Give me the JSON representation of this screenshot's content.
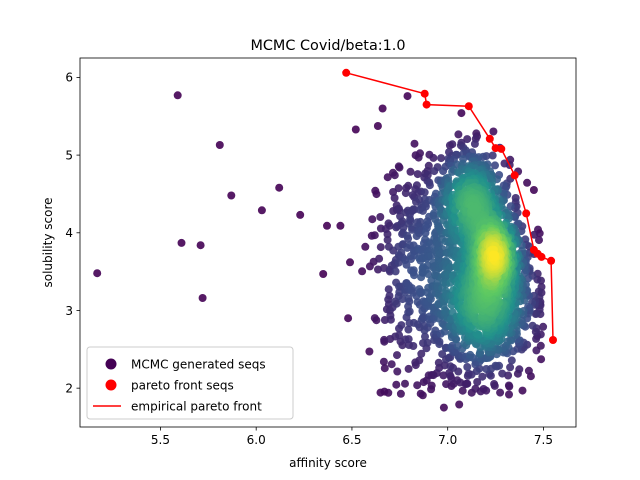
{
  "chart_data": {
    "type": "scatter",
    "title": "MCMC Covid/beta:1.0",
    "xlabel": "affinity score",
    "ylabel": "solubility score",
    "xlim": [
      5.08,
      7.67
    ],
    "ylim": [
      1.5,
      6.25
    ],
    "xticks": [
      5.5,
      6.0,
      6.5,
      7.0,
      7.5
    ],
    "xtick_labels": [
      "5.5",
      "6.0",
      "6.5",
      "7.0",
      "7.5"
    ],
    "yticks": [
      2,
      3,
      4,
      5,
      6
    ],
    "ytick_labels": [
      "2",
      "3",
      "4",
      "5",
      "6"
    ],
    "grid": false,
    "legend_position": "lower-left",
    "colors": {
      "density_low": "#440154",
      "density_mid": "#21918c",
      "density_high": "#fde725",
      "pareto": "#ff0000"
    },
    "series": [
      {
        "name": "MCMC generated seqs",
        "marker": "circle",
        "color_mapping": "viridis by point density",
        "outliers": [
          {
            "x": 5.17,
            "y": 3.48
          },
          {
            "x": 5.59,
            "y": 5.77
          },
          {
            "x": 5.61,
            "y": 3.87
          },
          {
            "x": 5.71,
            "y": 3.84
          },
          {
            "x": 5.72,
            "y": 3.16
          },
          {
            "x": 5.81,
            "y": 5.13
          },
          {
            "x": 5.87,
            "y": 4.48
          },
          {
            "x": 6.03,
            "y": 4.29
          },
          {
            "x": 6.12,
            "y": 4.58
          },
          {
            "x": 6.23,
            "y": 4.23
          },
          {
            "x": 6.35,
            "y": 3.47
          },
          {
            "x": 6.37,
            "y": 4.09
          },
          {
            "x": 6.49,
            "y": 3.62
          },
          {
            "x": 6.52,
            "y": 5.33
          },
          {
            "x": 6.66,
            "y": 5.6
          },
          {
            "x": 6.79,
            "y": 5.76
          },
          {
            "x": 6.48,
            "y": 2.9
          },
          {
            "x": 6.44,
            "y": 4.09
          },
          {
            "x": 6.57,
            "y": 3.82
          },
          {
            "x": 6.69,
            "y": 1.94
          },
          {
            "x": 6.98,
            "y": 1.75
          },
          {
            "x": 7.06,
            "y": 1.79
          }
        ],
        "clusters": [
          {
            "cx": 7.2,
            "cy": 3.1,
            "sx": 0.13,
            "sy": 0.45,
            "n": 900
          },
          {
            "cx": 7.13,
            "cy": 4.4,
            "sx": 0.1,
            "sy": 0.35,
            "n": 520
          },
          {
            "cx": 7.25,
            "cy": 3.75,
            "sx": 0.07,
            "sy": 0.28,
            "n": 420
          },
          {
            "cx": 6.95,
            "cy": 3.6,
            "sx": 0.15,
            "sy": 0.7,
            "n": 350
          },
          {
            "cx": 6.78,
            "cy": 3.4,
            "sx": 0.1,
            "sy": 0.8,
            "n": 120
          }
        ]
      },
      {
        "name": "pareto front seqs",
        "color": "#ff0000",
        "points": [
          {
            "x": 6.47,
            "y": 6.06
          },
          {
            "x": 6.88,
            "y": 5.79
          },
          {
            "x": 6.89,
            "y": 5.65
          },
          {
            "x": 7.11,
            "y": 5.63
          },
          {
            "x": 7.22,
            "y": 5.21
          },
          {
            "x": 7.25,
            "y": 5.09
          },
          {
            "x": 7.28,
            "y": 5.08
          },
          {
            "x": 7.35,
            "y": 4.74
          },
          {
            "x": 7.41,
            "y": 4.25
          },
          {
            "x": 7.45,
            "y": 3.78
          },
          {
            "x": 7.47,
            "y": 3.73
          },
          {
            "x": 7.49,
            "y": 3.69
          },
          {
            "x": 7.54,
            "y": 3.64
          },
          {
            "x": 7.55,
            "y": 2.62
          }
        ]
      },
      {
        "name": "empirical pareto front",
        "type": "line",
        "color": "#ff0000",
        "points": [
          {
            "x": 6.47,
            "y": 6.06
          },
          {
            "x": 6.88,
            "y": 5.79
          },
          {
            "x": 6.89,
            "y": 5.65
          },
          {
            "x": 7.11,
            "y": 5.63
          },
          {
            "x": 7.22,
            "y": 5.21
          },
          {
            "x": 7.25,
            "y": 5.09
          },
          {
            "x": 7.28,
            "y": 5.08
          },
          {
            "x": 7.35,
            "y": 4.74
          },
          {
            "x": 7.41,
            "y": 4.25
          },
          {
            "x": 7.45,
            "y": 3.78
          },
          {
            "x": 7.47,
            "y": 3.73
          },
          {
            "x": 7.49,
            "y": 3.69
          },
          {
            "x": 7.54,
            "y": 3.64
          },
          {
            "x": 7.55,
            "y": 2.62
          }
        ]
      }
    ]
  }
}
